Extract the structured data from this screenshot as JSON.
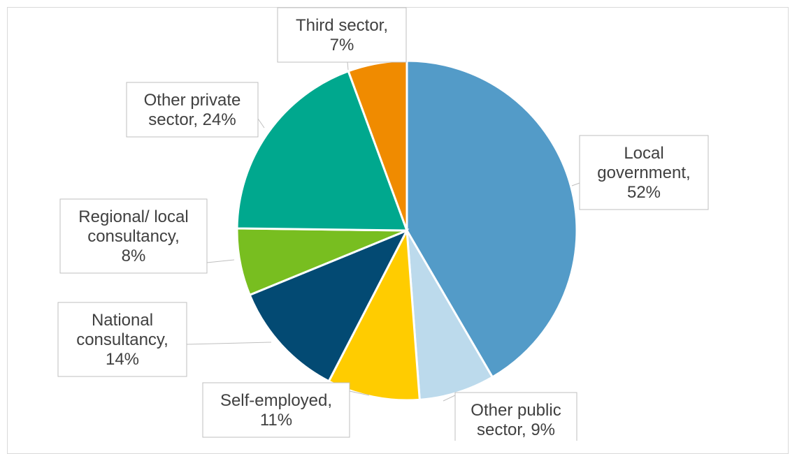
{
  "chart_data": {
    "type": "pie",
    "title": "",
    "slices": [
      {
        "label": "Local government",
        "value": 52,
        "label_text": [
          "Local",
          "government,",
          "52%"
        ],
        "color": "#539BC8"
      },
      {
        "label": "Other public sector",
        "value": 9,
        "label_text": [
          "Other public",
          "sector, 9%"
        ],
        "color": "#BCDAEC"
      },
      {
        "label": "Self-employed",
        "value": 11,
        "label_text": [
          "Self-employed,",
          "11%"
        ],
        "color": "#FFCC00"
      },
      {
        "label": "National consultancy",
        "value": 14,
        "label_text": [
          "National",
          "consultancy,",
          "14%"
        ],
        "color": "#034A73"
      },
      {
        "label": "Regional/ local consultancy",
        "value": 8,
        "label_text": [
          "Regional/ local",
          "consultancy,",
          "8%"
        ],
        "color": "#78BE20"
      },
      {
        "label": "Other private sector",
        "value": 24,
        "label_text": [
          "Other private",
          "sector, 24%"
        ],
        "color": "#00A88E"
      },
      {
        "label": "Third sector",
        "value": 7,
        "label_text": [
          "Third sector,",
          "7%"
        ],
        "color": "#F08B00"
      }
    ],
    "legend": "none",
    "label_style": "callouts with leader lines",
    "border_color": "#d9d9d9",
    "slice_border_color": "#ffffff",
    "text_color": "#404040"
  }
}
